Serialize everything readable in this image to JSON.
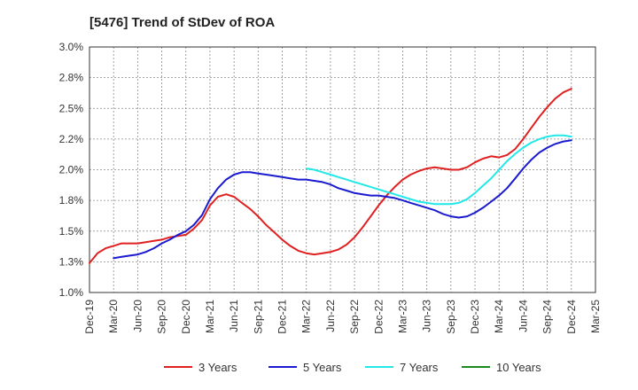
{
  "chart_data": {
    "type": "line",
    "title": "[5476]  Trend of StDev of ROA",
    "xlabel": "",
    "ylabel": "",
    "grid": true,
    "legend_position": "bottom",
    "x_tick_labels": [
      "Dec-19",
      "Mar-20",
      "Jun-20",
      "Sep-20",
      "Dec-20",
      "Mar-21",
      "Jun-21",
      "Sep-21",
      "Dec-21",
      "Mar-22",
      "Jun-22",
      "Sep-22",
      "Dec-22",
      "Mar-23",
      "Jun-23",
      "Sep-23",
      "Dec-23",
      "Mar-24",
      "Jun-24",
      "Sep-24",
      "Dec-24",
      "Mar-25"
    ],
    "y_tick_labels": [
      "1.0%",
      "1.3%",
      "1.5%",
      "1.8%",
      "2.0%",
      "2.2%",
      "2.5%",
      "2.8%",
      "3.0%"
    ],
    "ylim": [
      1.0,
      3.0
    ],
    "series": [
      {
        "name": "3 Years",
        "color": "#e02020",
        "points": [
          [
            0,
            1.24
          ],
          [
            0.33,
            1.32
          ],
          [
            0.67,
            1.36
          ],
          [
            1,
            1.38
          ],
          [
            1.33,
            1.4
          ],
          [
            1.67,
            1.4
          ],
          [
            2,
            1.4
          ],
          [
            2.33,
            1.41
          ],
          [
            2.67,
            1.42
          ],
          [
            3,
            1.43
          ],
          [
            3.33,
            1.45
          ],
          [
            3.67,
            1.46
          ],
          [
            4,
            1.47
          ],
          [
            4.33,
            1.52
          ],
          [
            4.67,
            1.59
          ],
          [
            5,
            1.71
          ],
          [
            5.33,
            1.78
          ],
          [
            5.67,
            1.8
          ],
          [
            6,
            1.78
          ],
          [
            6.33,
            1.73
          ],
          [
            6.67,
            1.68
          ],
          [
            7,
            1.62
          ],
          [
            7.33,
            1.55
          ],
          [
            7.67,
            1.49
          ],
          [
            8,
            1.43
          ],
          [
            8.33,
            1.38
          ],
          [
            8.67,
            1.34
          ],
          [
            9,
            1.32
          ],
          [
            9.33,
            1.31
          ],
          [
            9.67,
            1.32
          ],
          [
            10,
            1.33
          ],
          [
            10.33,
            1.35
          ],
          [
            10.67,
            1.39
          ],
          [
            11,
            1.45
          ],
          [
            11.33,
            1.53
          ],
          [
            11.67,
            1.62
          ],
          [
            12,
            1.71
          ],
          [
            12.33,
            1.79
          ],
          [
            12.67,
            1.86
          ],
          [
            13,
            1.92
          ],
          [
            13.33,
            1.96
          ],
          [
            13.67,
            1.99
          ],
          [
            14,
            2.01
          ],
          [
            14.33,
            2.02
          ],
          [
            14.67,
            2.01
          ],
          [
            15,
            2.0
          ],
          [
            15.33,
            2.0
          ],
          [
            15.67,
            2.02
          ],
          [
            16,
            2.06
          ],
          [
            16.33,
            2.09
          ],
          [
            16.67,
            2.11
          ],
          [
            17,
            2.1
          ],
          [
            17.33,
            2.12
          ],
          [
            17.67,
            2.17
          ],
          [
            18,
            2.25
          ],
          [
            18.33,
            2.34
          ],
          [
            18.67,
            2.43
          ],
          [
            19,
            2.51
          ],
          [
            19.33,
            2.58
          ],
          [
            19.67,
            2.63
          ],
          [
            20,
            2.66
          ]
        ]
      },
      {
        "name": "5 Years",
        "color": "#1a1ad0",
        "points": [
          [
            1,
            1.28
          ],
          [
            1.33,
            1.29
          ],
          [
            1.67,
            1.3
          ],
          [
            2,
            1.31
          ],
          [
            2.33,
            1.33
          ],
          [
            2.67,
            1.36
          ],
          [
            3,
            1.4
          ],
          [
            3.33,
            1.43
          ],
          [
            3.67,
            1.47
          ],
          [
            4,
            1.5
          ],
          [
            4.33,
            1.55
          ],
          [
            4.67,
            1.63
          ],
          [
            5,
            1.76
          ],
          [
            5.33,
            1.85
          ],
          [
            5.67,
            1.92
          ],
          [
            6,
            1.96
          ],
          [
            6.33,
            1.98
          ],
          [
            6.67,
            1.98
          ],
          [
            7,
            1.97
          ],
          [
            7.33,
            1.96
          ],
          [
            7.67,
            1.95
          ],
          [
            8,
            1.94
          ],
          [
            8.33,
            1.93
          ],
          [
            8.67,
            1.92
          ],
          [
            9,
            1.92
          ],
          [
            9.33,
            1.91
          ],
          [
            9.67,
            1.9
          ],
          [
            10,
            1.88
          ],
          [
            10.33,
            1.85
          ],
          [
            10.67,
            1.83
          ],
          [
            11,
            1.81
          ],
          [
            11.33,
            1.8
          ],
          [
            11.67,
            1.79
          ],
          [
            12,
            1.79
          ],
          [
            12.33,
            1.78
          ],
          [
            12.67,
            1.77
          ],
          [
            13,
            1.75
          ],
          [
            13.33,
            1.73
          ],
          [
            13.67,
            1.71
          ],
          [
            14,
            1.69
          ],
          [
            14.33,
            1.67
          ],
          [
            14.67,
            1.64
          ],
          [
            15,
            1.62
          ],
          [
            15.33,
            1.61
          ],
          [
            15.67,
            1.62
          ],
          [
            16,
            1.65
          ],
          [
            16.33,
            1.69
          ],
          [
            16.67,
            1.74
          ],
          [
            17,
            1.79
          ],
          [
            17.33,
            1.85
          ],
          [
            17.67,
            1.93
          ],
          [
            18,
            2.01
          ],
          [
            18.33,
            2.08
          ],
          [
            18.67,
            2.14
          ],
          [
            19,
            2.18
          ],
          [
            19.33,
            2.21
          ],
          [
            19.67,
            2.23
          ],
          [
            20,
            2.24
          ]
        ]
      },
      {
        "name": "7 Years",
        "color": "#22e8e8",
        "points": [
          [
            9,
            2.01
          ],
          [
            9.33,
            2.0
          ],
          [
            9.67,
            1.98
          ],
          [
            10,
            1.96
          ],
          [
            10.33,
            1.94
          ],
          [
            10.67,
            1.92
          ],
          [
            11,
            1.9
          ],
          [
            11.33,
            1.88
          ],
          [
            11.67,
            1.86
          ],
          [
            12,
            1.84
          ],
          [
            12.33,
            1.82
          ],
          [
            12.67,
            1.8
          ],
          [
            13,
            1.78
          ],
          [
            13.33,
            1.76
          ],
          [
            13.67,
            1.74
          ],
          [
            14,
            1.73
          ],
          [
            14.33,
            1.72
          ],
          [
            14.67,
            1.72
          ],
          [
            15,
            1.72
          ],
          [
            15.33,
            1.73
          ],
          [
            15.67,
            1.76
          ],
          [
            16,
            1.81
          ],
          [
            16.33,
            1.87
          ],
          [
            16.67,
            1.93
          ],
          [
            17,
            2.0
          ],
          [
            17.33,
            2.07
          ],
          [
            17.67,
            2.13
          ],
          [
            18,
            2.18
          ],
          [
            18.33,
            2.22
          ],
          [
            18.67,
            2.25
          ],
          [
            19,
            2.27
          ],
          [
            19.33,
            2.28
          ],
          [
            19.67,
            2.28
          ],
          [
            20,
            2.27
          ]
        ]
      },
      {
        "name": "10 Years",
        "color": "#1a8a1a",
        "points": []
      }
    ]
  }
}
